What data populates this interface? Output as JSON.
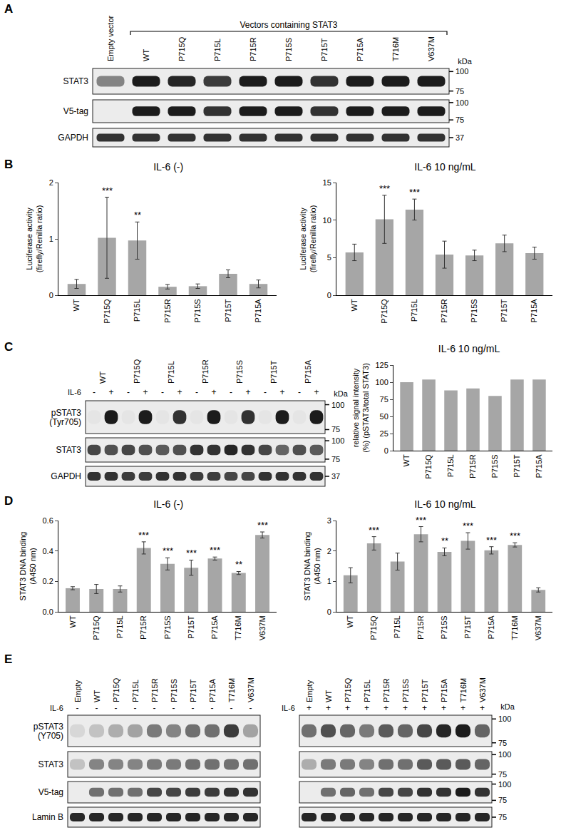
{
  "panel_labels": [
    "A",
    "B",
    "C",
    "D",
    "E"
  ],
  "chart_data": [
    {
      "panel": "B",
      "type": "bar",
      "title": "IL-6 (-)",
      "y_label": "Luciferase activity (firefly/Renilla ratio)",
      "categories": [
        "WT",
        "P715Q",
        "P715L",
        "P715R",
        "P715S",
        "P715T",
        "P715A"
      ],
      "values": [
        0.2,
        1.02,
        0.97,
        0.15,
        0.16,
        0.38,
        0.2
      ],
      "error": [
        0.08,
        0.72,
        0.33,
        0.04,
        0.04,
        0.07,
        0.07
      ],
      "color": "#a6a6a6",
      "ylim": [
        0,
        2
      ],
      "yticks": [
        0,
        1,
        2
      ],
      "grid": false,
      "annotations": [
        {
          "category": "P715Q",
          "text": "***"
        },
        {
          "category": "P715L",
          "text": "**"
        }
      ]
    },
    {
      "panel": "B",
      "type": "bar",
      "title": "IL-6 10 ng/mL",
      "y_label": "Luciferase activity (firefly/Renilla ratio)",
      "categories": [
        "WT",
        "P715Q",
        "P715L",
        "P715R",
        "P715S",
        "P715T",
        "P715A"
      ],
      "values": [
        5.7,
        10.1,
        11.4,
        5.4,
        5.3,
        6.9,
        5.6
      ],
      "error": [
        1.1,
        3.2,
        1.4,
        1.8,
        0.7,
        1.1,
        0.8
      ],
      "color": "#a6a6a6",
      "ylim": [
        0,
        15
      ],
      "yticks": [
        0,
        5,
        10,
        15
      ],
      "grid": false,
      "annotations": [
        {
          "category": "P715Q",
          "text": "***"
        },
        {
          "category": "P715L",
          "text": "***"
        }
      ]
    },
    {
      "panel": "C",
      "type": "bar",
      "title": "IL-6 10 ng/mL",
      "y_label": "relative signal intensity (%) (pSTAT3/total STAT3)",
      "categories": [
        "WT",
        "P715Q",
        "P715L",
        "P715R",
        "P715S",
        "P715T",
        "P715A"
      ],
      "values": [
        100,
        104,
        88,
        91,
        80,
        104,
        104
      ],
      "color": "#a6a6a6",
      "ylim": [
        0,
        125
      ],
      "yticks": [
        0,
        25,
        50,
        75,
        100,
        125
      ],
      "grid": false
    },
    {
      "panel": "D",
      "type": "bar",
      "title": "IL-6 (-)",
      "y_label": "STAT3 DNA binding (A450 nm)",
      "categories": [
        "WT",
        "P715Q",
        "P715L",
        "P715R",
        "P715S",
        "P715T",
        "P715A",
        "T716M",
        "V637M"
      ],
      "values": [
        0.155,
        0.15,
        0.15,
        0.42,
        0.315,
        0.29,
        0.35,
        0.255,
        0.505
      ],
      "error": [
        0.01,
        0.03,
        0.02,
        0.04,
        0.04,
        0.05,
        0.01,
        0.01,
        0.02
      ],
      "color": "#a6a6a6",
      "ylim": [
        0,
        0.6
      ],
      "yticks": [
        {
          "value": 0,
          "label": "0.0"
        },
        {
          "value": 0.2,
          "label": "0.2"
        },
        {
          "value": 0.4,
          "label": "0.4"
        },
        {
          "value": 0.6,
          "label": "0.6"
        }
      ],
      "grid": false,
      "annotations": [
        {
          "category": "P715R",
          "text": "***"
        },
        {
          "category": "P715S",
          "text": "***"
        },
        {
          "category": "P715T",
          "text": "***"
        },
        {
          "category": "P715A",
          "text": "***"
        },
        {
          "category": "T716M",
          "text": "**"
        },
        {
          "category": "V637M",
          "text": "***"
        }
      ]
    },
    {
      "panel": "D",
      "type": "bar",
      "title": "IL-6 10 ng/mL",
      "y_label": "STAT3 DNA binding (A450 nm)",
      "categories": [
        "WT",
        "P715Q",
        "P715L",
        "P715R",
        "P715S",
        "P715T",
        "P715A",
        "T716M",
        "V637M"
      ],
      "values": [
        1.2,
        2.25,
        1.65,
        2.55,
        1.97,
        2.33,
        2.02,
        2.2,
        0.72
      ],
      "error": [
        0.25,
        0.22,
        0.28,
        0.25,
        0.13,
        0.27,
        0.12,
        0.07,
        0.07
      ],
      "color": "#a6a6a6",
      "ylim": [
        0,
        3
      ],
      "yticks": [
        0,
        1,
        2,
        3
      ],
      "grid": false,
      "annotations": [
        {
          "category": "P715Q",
          "text": "***"
        },
        {
          "category": "P715R",
          "text": "***"
        },
        {
          "category": "P715S",
          "text": "**"
        },
        {
          "category": "P715T",
          "text": "***"
        },
        {
          "category": "P715A",
          "text": "***"
        },
        {
          "category": "T716M",
          "text": "***"
        }
      ]
    }
  ],
  "blots": [
    {
      "panel": "A",
      "lane_labels": [
        "Empty vector",
        "WT",
        "P715Q",
        "P715L",
        "P715R",
        "P715S",
        "P715T",
        "P715A",
        "T716M",
        "V637M"
      ],
      "groups": [
        {
          "text": "Vectors containing STAT3",
          "from": 1,
          "to": 9,
          "style": "bracket"
        }
      ],
      "unit": "kDa",
      "rows": [
        {
          "label": "STAT3",
          "band_intensity": [
            0.5,
            1,
            0.95,
            0.85,
            1,
            1,
            0.9,
            1,
            1,
            1
          ],
          "markers": [
            "100",
            "75"
          ]
        },
        {
          "label": "V5-tag",
          "band_intensity": [
            0,
            1,
            1,
            0.9,
            1,
            1,
            0.9,
            1,
            1,
            1
          ],
          "markers": [
            "100",
            "75"
          ]
        },
        {
          "label": "GAPDH",
          "band_intensity": [
            0.9,
            0.9,
            0.9,
            0.9,
            0.9,
            0.9,
            0.9,
            0.9,
            0.9,
            0.9
          ],
          "markers": [
            "37"
          ]
        }
      ]
    },
    {
      "panel": "C",
      "groups": [
        {
          "text": "WT",
          "from": 0,
          "to": 1,
          "style": "rotated"
        },
        {
          "text": "P715Q",
          "from": 2,
          "to": 3,
          "style": "rotated"
        },
        {
          "text": "P715L",
          "from": 4,
          "to": 5,
          "style": "rotated"
        },
        {
          "text": "P715R",
          "from": 6,
          "to": 7,
          "style": "rotated"
        },
        {
          "text": "P715S",
          "from": 8,
          "to": 9,
          "style": "rotated"
        },
        {
          "text": "P715T",
          "from": 10,
          "to": 11,
          "style": "rotated"
        },
        {
          "text": "P715A",
          "from": 12,
          "to": 13,
          "style": "rotated"
        }
      ],
      "treatment": {
        "label": "IL-6",
        "values": [
          "-",
          "+",
          "-",
          "+",
          "-",
          "+",
          "-",
          "+",
          "-",
          "+",
          "-",
          "+",
          "-",
          "+"
        ]
      },
      "unit": "kDa",
      "rows": [
        {
          "label": "pSTAT3 (Tyr705)",
          "band_intensity": [
            0.03,
            1,
            0.03,
            1,
            0.03,
            0.9,
            0.03,
            1,
            0.03,
            0.9,
            0.03,
            1,
            0.03,
            1
          ],
          "markers": [
            "100",
            "75"
          ]
        },
        {
          "label": "STAT3",
          "band_intensity": [
            0.8,
            0.75,
            0.8,
            0.75,
            0.7,
            0.75,
            0.9,
            0.9,
            0.95,
            0.9,
            0.8,
            0.65,
            0.75,
            0.7
          ],
          "markers": [
            "100",
            "75"
          ]
        },
        {
          "label": "GAPDH",
          "band_intensity": [
            0.9,
            0.9,
            0.85,
            0.85,
            0.9,
            0.9,
            0.85,
            0.85,
            0.8,
            0.8,
            0.9,
            0.9,
            0.9,
            0.9
          ],
          "markers": [
            "37"
          ]
        }
      ]
    },
    {
      "panel": "E",
      "lane_labels": [
        "Empty",
        "WT",
        "P715Q",
        "P715L",
        "P715R",
        "P715S",
        "P715T",
        "P715A",
        "T716M",
        "V637M"
      ],
      "treatment": {
        "label": "IL-6",
        "values": [
          "-",
          "-",
          "-",
          "-",
          "-",
          "-",
          "-",
          "-",
          "-",
          "-"
        ]
      },
      "rows": [
        {
          "label": "pSTAT3 (Y705)",
          "band_intensity": [
            0.1,
            0.2,
            0.3,
            0.35,
            0.55,
            0.5,
            0.6,
            0.6,
            0.85,
            0.35
          ]
        },
        {
          "label": "STAT3",
          "band_intensity": [
            0.2,
            0.5,
            0.5,
            0.5,
            0.55,
            0.55,
            0.6,
            0.6,
            0.6,
            0.6
          ]
        },
        {
          "label": "V5-tag",
          "band_intensity": [
            0,
            0.6,
            0.6,
            0.6,
            0.8,
            0.8,
            0.85,
            0.85,
            0.9,
            0.9
          ]
        },
        {
          "label": "Lamin B",
          "band_intensity": [
            0.95,
            0.95,
            0.95,
            0.95,
            0.95,
            0.95,
            0.95,
            0.95,
            0.95,
            0.95
          ]
        }
      ]
    },
    {
      "panel": "E",
      "lane_labels": [
        "Empty",
        "WT",
        "P715Q",
        "P715L",
        "P715R",
        "P715S",
        "P715T",
        "P715A",
        "T716M",
        "V637M"
      ],
      "treatment": {
        "label": "IL-6",
        "values": [
          "+",
          "+",
          "+",
          "+",
          "+",
          "+",
          "+",
          "+",
          "+",
          "+"
        ]
      },
      "unit": "kDa",
      "rows": [
        {
          "band_intensity": [
            0.6,
            0.75,
            0.65,
            0.55,
            0.7,
            0.65,
            0.8,
            0.95,
            1,
            0.65
          ],
          "markers": [
            "100",
            "75"
          ]
        },
        {
          "band_intensity": [
            0.3,
            0.55,
            0.55,
            0.5,
            0.6,
            0.6,
            0.7,
            0.7,
            0.7,
            0.65
          ],
          "markers": [
            "100",
            "75"
          ]
        },
        {
          "band_intensity": [
            0,
            0.6,
            0.65,
            0.6,
            0.8,
            0.8,
            0.9,
            0.9,
            1,
            0.9
          ],
          "markers": [
            "100",
            "75"
          ]
        },
        {
          "band_intensity": [
            0.95,
            0.95,
            0.95,
            0.95,
            0.95,
            0.95,
            0.95,
            0.95,
            0.95,
            0.95
          ],
          "markers": [
            "75"
          ]
        }
      ]
    }
  ]
}
